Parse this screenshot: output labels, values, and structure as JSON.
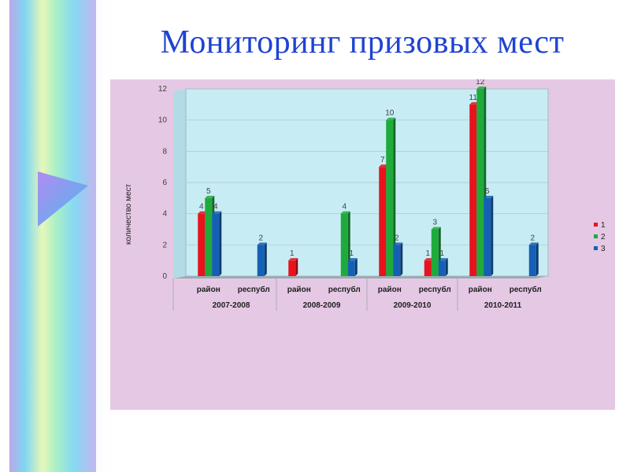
{
  "slide": {
    "title": "Мониторинг призовых мест"
  },
  "colors": {
    "series1": "#e8131c",
    "series2": "#1faa3c",
    "series3": "#1560b4",
    "title": "#1f43d1",
    "panel": "#e5c8e4",
    "plot": "#c8ecf4"
  },
  "chart_data": {
    "type": "bar",
    "ylabel": "количество мест",
    "ylim": [
      0,
      12
    ],
    "yticks": [
      "0",
      "2",
      "4",
      "6",
      "8",
      "10",
      "12"
    ],
    "grid": true,
    "legend_position": "right",
    "groups": [
      "2007-2008",
      "2008-2009",
      "2009-2010",
      "2010-2011"
    ],
    "subcategories": [
      "район",
      "республ"
    ],
    "categories": [
      "2007-2008 район",
      "2007-2008 республ",
      "2008-2009 район",
      "2008-2009 республ",
      "2009-2010 район",
      "2009-2010 республ",
      "2010-2011 район",
      "2010-2011 республ"
    ],
    "series": [
      {
        "name": "1",
        "values": [
          4,
          null,
          1,
          null,
          7,
          1,
          11,
          null
        ]
      },
      {
        "name": "2",
        "values": [
          5,
          null,
          null,
          4,
          10,
          3,
          12,
          null
        ]
      },
      {
        "name": "3",
        "values": [
          4,
          2,
          null,
          1,
          2,
          1,
          5,
          2
        ]
      }
    ]
  }
}
